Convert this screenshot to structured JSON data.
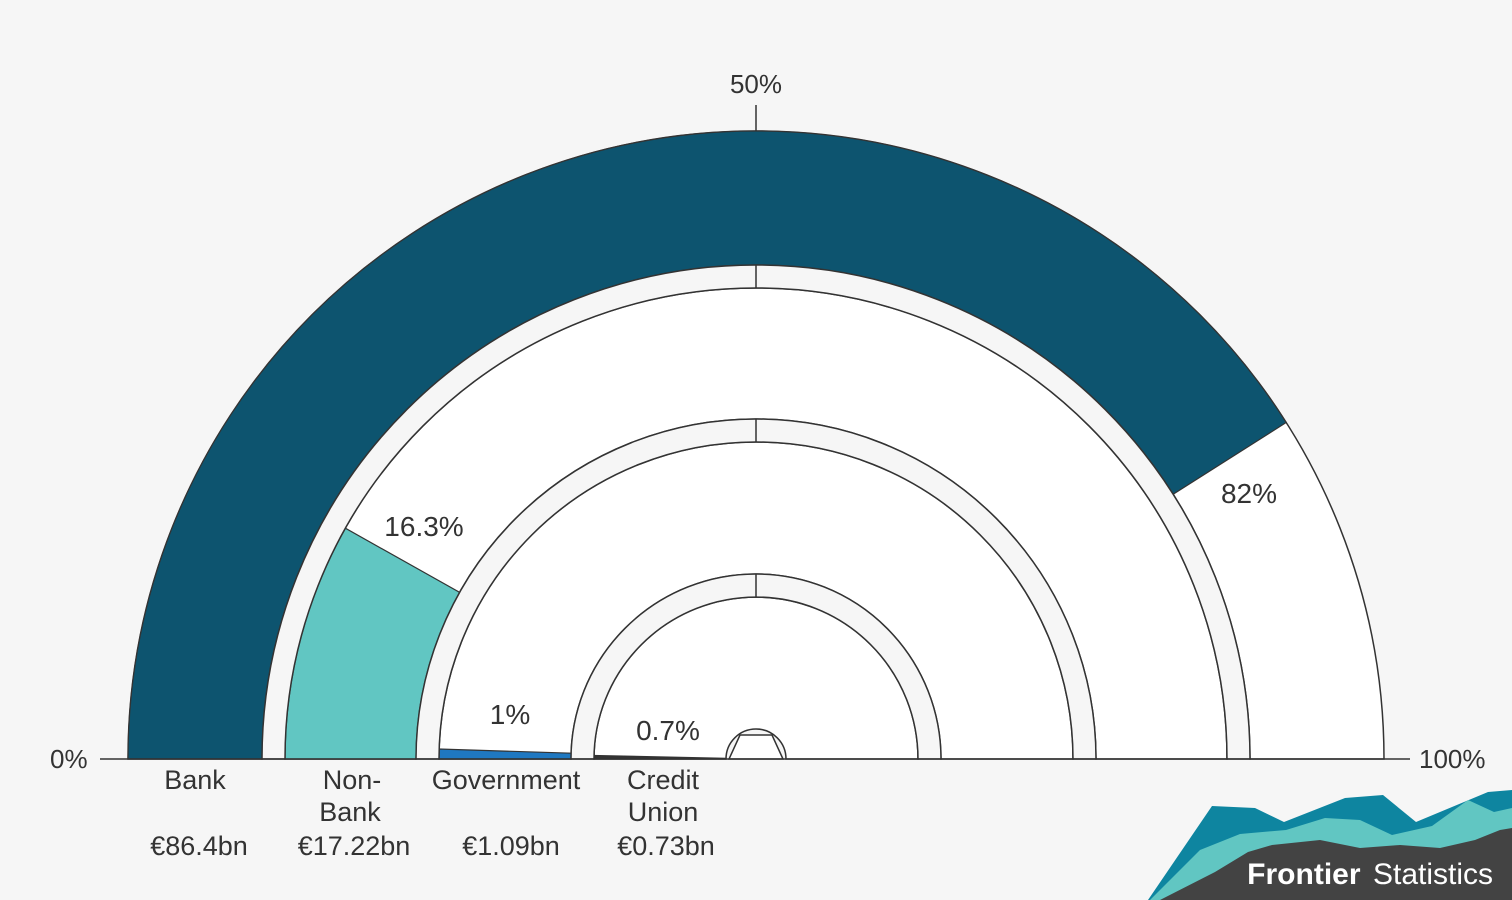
{
  "chart_data": {
    "type": "gauge",
    "axis": {
      "min_label": "0%",
      "mid_label": "50%",
      "max_label": "100%",
      "range": [
        0,
        100
      ]
    },
    "series": [
      {
        "name": "Bank",
        "value_label": "€86.4bn",
        "percent": 82,
        "percent_label": "82%",
        "color": "#0d546f"
      },
      {
        "name": "Non-Bank",
        "name_lines": [
          "Non-",
          "Bank"
        ],
        "value_label": "€17.22bn",
        "percent": 16.3,
        "percent_label": "16.3%",
        "color": "#61c6c2"
      },
      {
        "name": "Government",
        "value_label": "€1.09bn",
        "percent": 1,
        "percent_label": "1%",
        "color": "#1f78c1"
      },
      {
        "name": "Credit Union",
        "name_lines": [
          "Credit",
          "Union"
        ],
        "value_label": "€0.73bn",
        "percent": 0.7,
        "percent_label": "0.7%",
        "color": "#333333"
      }
    ]
  },
  "branding": {
    "bold": "Frontier",
    "regular": "Statistics",
    "colors": {
      "dark": "#434343",
      "teal": "#0e85a0",
      "light": "#61c6c2"
    }
  }
}
